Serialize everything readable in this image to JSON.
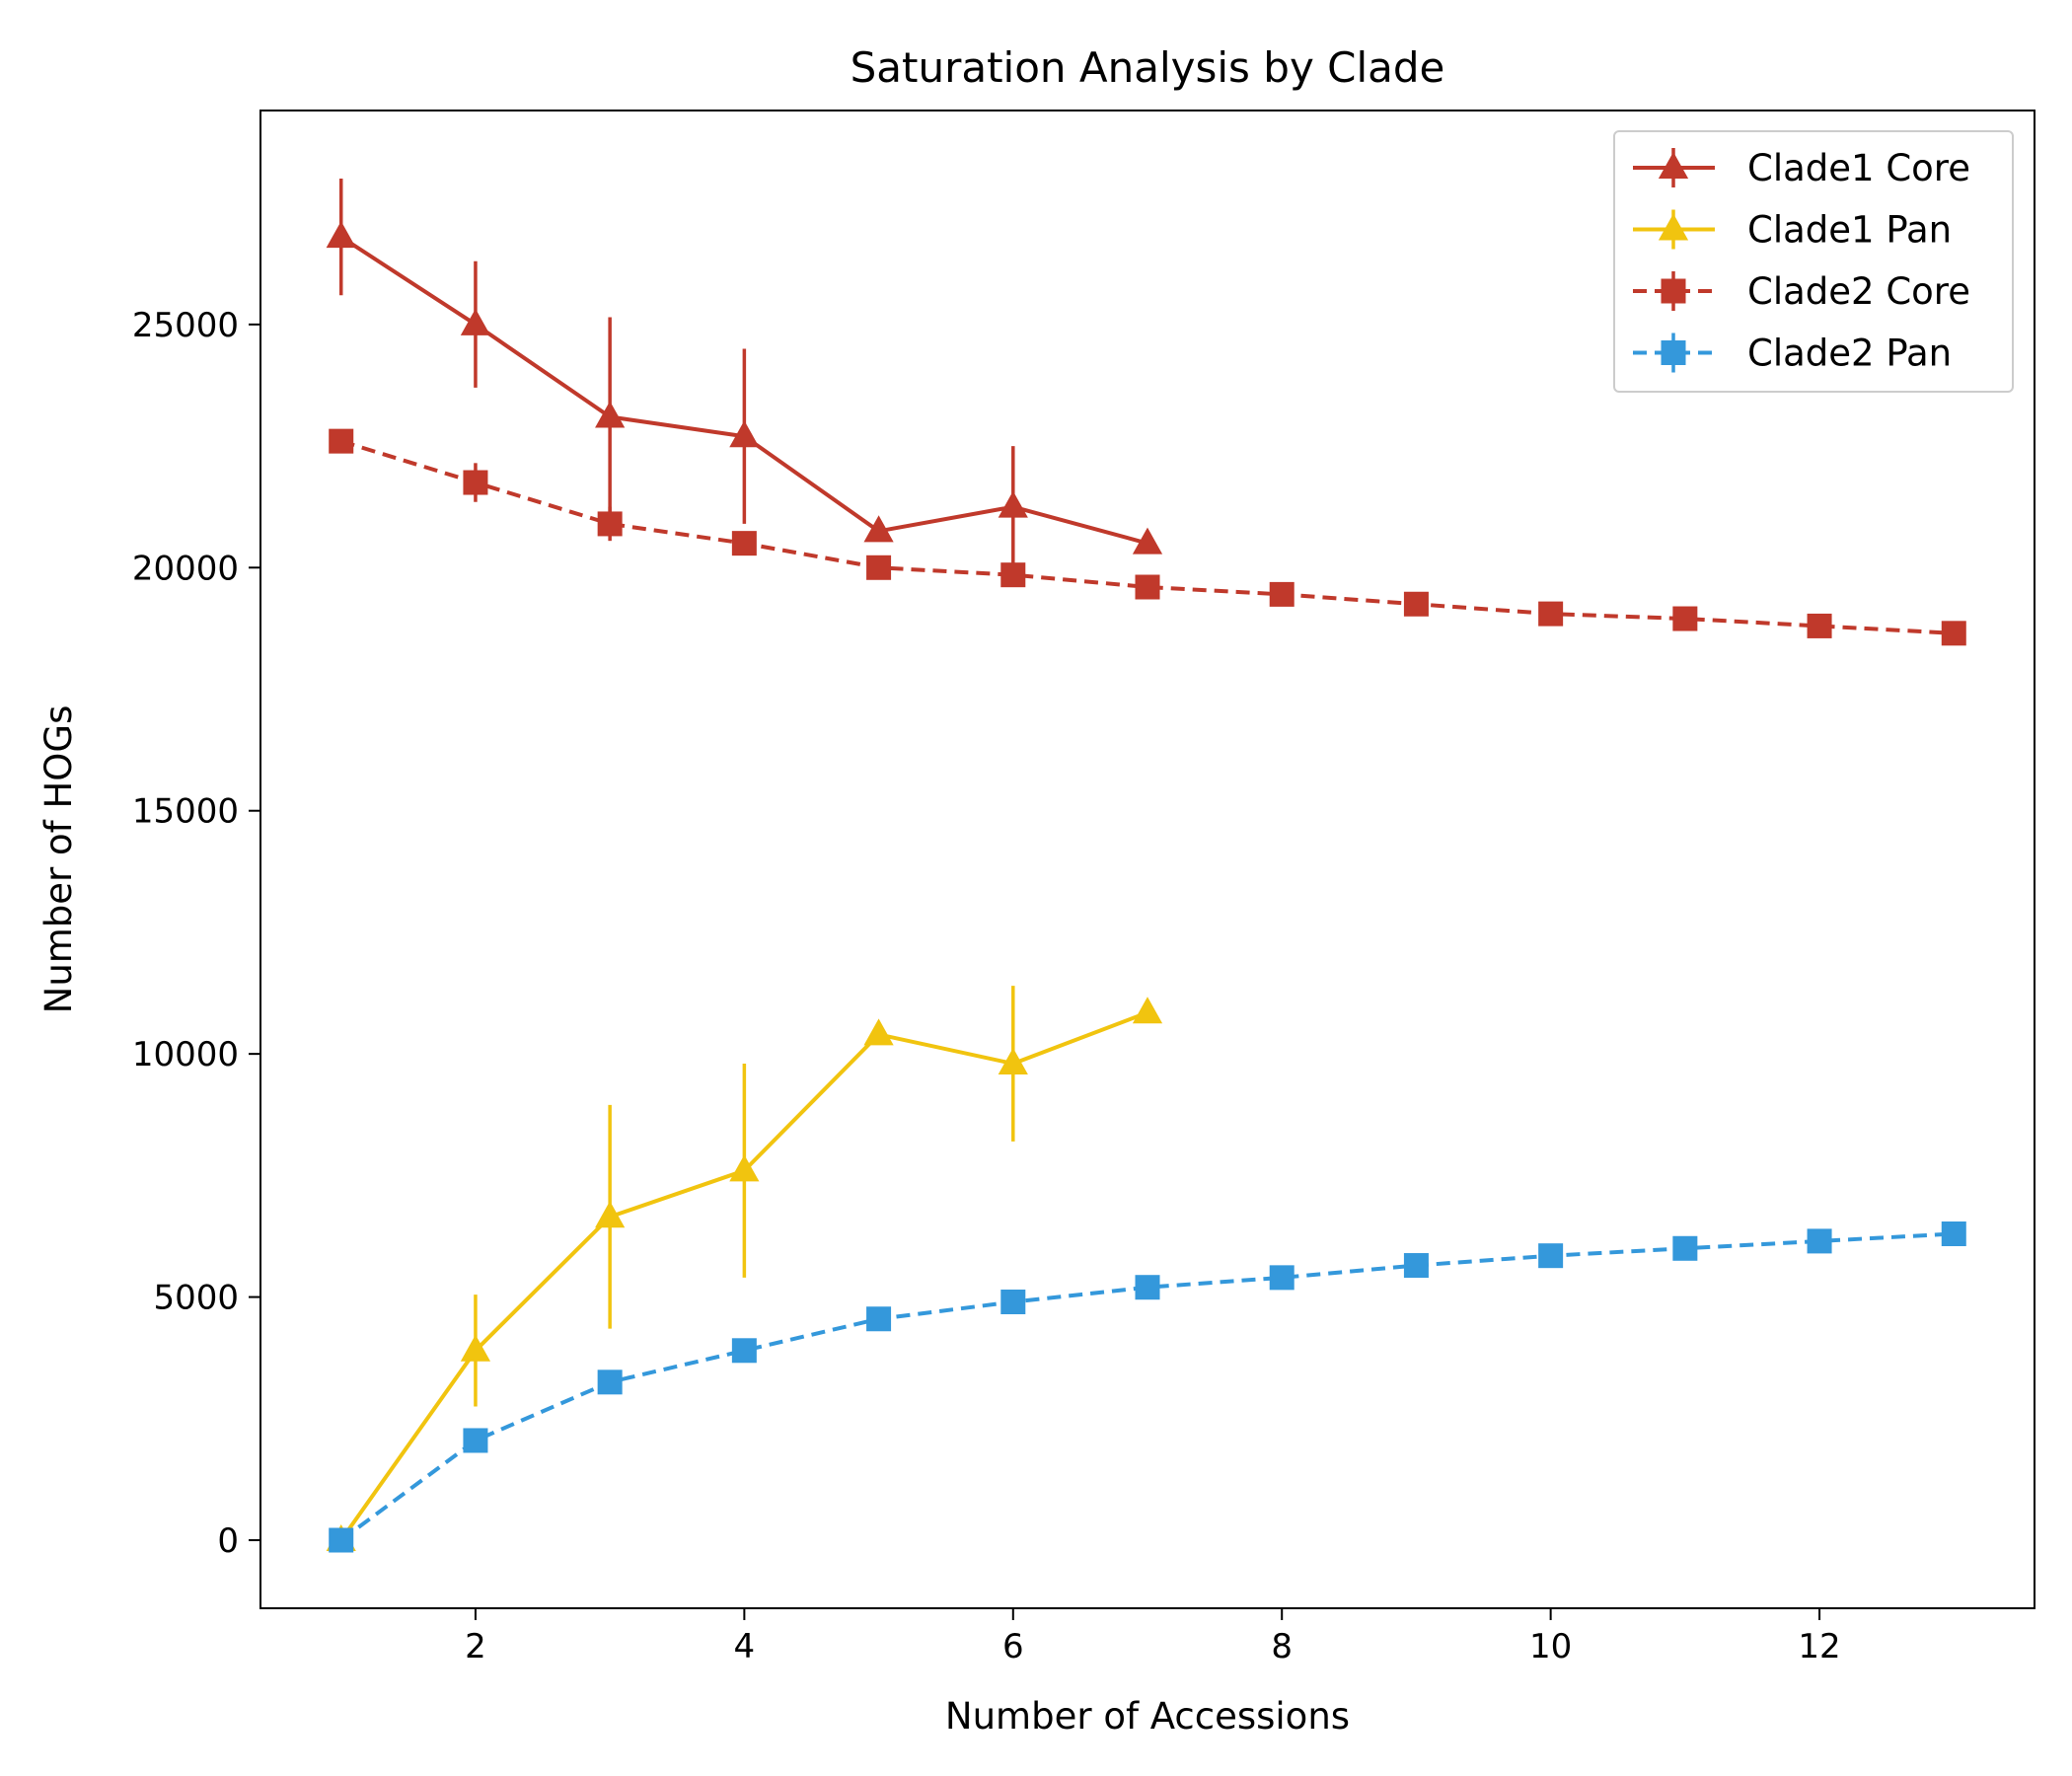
{
  "chart_data": {
    "type": "line",
    "title": "Saturation Analysis by Clade",
    "xlabel": "Number of Accessions",
    "ylabel": "Number of HOGs",
    "xlim": [
      0.4,
      13.6
    ],
    "ylim": [
      -1400,
      29400
    ],
    "xticks": [
      2,
      4,
      6,
      8,
      10,
      12
    ],
    "yticks": [
      0,
      5000,
      10000,
      15000,
      20000,
      25000
    ],
    "grid": false,
    "legend_position": "top-right",
    "series": [
      {
        "name": "Clade1 Core",
        "color": "#c0392b",
        "linestyle": "solid",
        "marker": "triangle",
        "x": [
          1,
          2,
          3,
          4,
          5,
          6,
          7
        ],
        "y": [
          26800,
          25000,
          23100,
          22700,
          20750,
          21250,
          20500
        ],
        "err": [
          1200,
          1300,
          2050,
          1800,
          0,
          1250,
          0
        ]
      },
      {
        "name": "Clade1 Pan",
        "color": "#f1c40f",
        "linestyle": "solid",
        "marker": "triangle",
        "x": [
          1,
          2,
          3,
          4,
          5,
          6,
          7
        ],
        "y": [
          0,
          3900,
          6650,
          7600,
          10400,
          9800,
          10850
        ],
        "err": [
          0,
          1150,
          2300,
          2200,
          0,
          1600,
          0
        ]
      },
      {
        "name": "Clade2 Core",
        "color": "#c0392b",
        "linestyle": "dashed",
        "marker": "square",
        "x": [
          1,
          2,
          3,
          4,
          5,
          6,
          7,
          8,
          9,
          10,
          11,
          12,
          13
        ],
        "y": [
          22600,
          21750,
          20900,
          20500,
          20000,
          19850,
          19600,
          19450,
          19250,
          19050,
          18950,
          18800,
          18650
        ],
        "err": [
          0,
          400,
          350,
          150,
          0,
          200,
          0,
          0,
          0,
          0,
          0,
          0,
          0
        ]
      },
      {
        "name": "Clade2 Pan",
        "color": "#3498db",
        "linestyle": "dashed",
        "marker": "square",
        "x": [
          1,
          2,
          3,
          4,
          5,
          6,
          7,
          8,
          9,
          10,
          11,
          12,
          13
        ],
        "y": [
          0,
          2050,
          3250,
          3900,
          4550,
          4900,
          5200,
          5400,
          5650,
          5850,
          6000,
          6150,
          6300
        ],
        "err": [
          0,
          150,
          150,
          150,
          0,
          100,
          0,
          0,
          0,
          0,
          0,
          0,
          0
        ]
      }
    ]
  }
}
